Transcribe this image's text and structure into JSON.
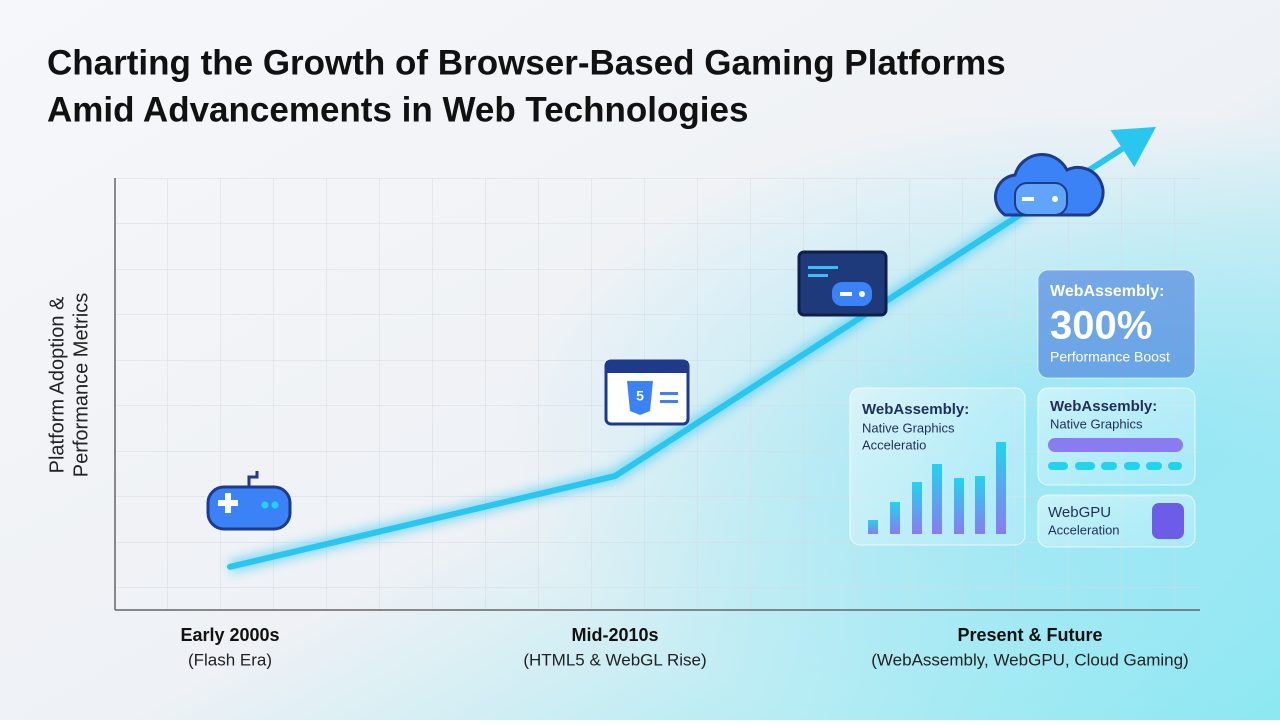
{
  "chart_data": {
    "type": "line",
    "title": [
      "Charting the Growth of Browser-Based Gaming Platforms",
      "Amid Advancements in Web Technologies"
    ],
    "ylabel": [
      "Platform Adoption &",
      "Performance Metrics"
    ],
    "categories": [
      "Early 2000s",
      "Mid-2010s",
      "Present & Future"
    ],
    "category_subtitles": [
      "(Flash Era)",
      "(HTML5 & WebGL Rise)",
      "(WebAssembly, WebGPU, Cloud Gaming)"
    ],
    "values": [
      10,
      31,
      93
    ],
    "color": "#29c6f0",
    "ylim": [
      0,
      100
    ],
    "grid": true,
    "annotations": [
      {
        "lines": [
          "WebAssembly:",
          "300%",
          "Performance Boost"
        ]
      },
      {
        "lines": [
          "WebAssembly:",
          "Native Graphics",
          "Acceleratio"
        ]
      },
      {
        "lines": [
          "WebAssembly:",
          "Native Graphics"
        ]
      },
      {
        "lines": [
          "WebGPU",
          "Acceleration"
        ]
      }
    ]
  }
}
